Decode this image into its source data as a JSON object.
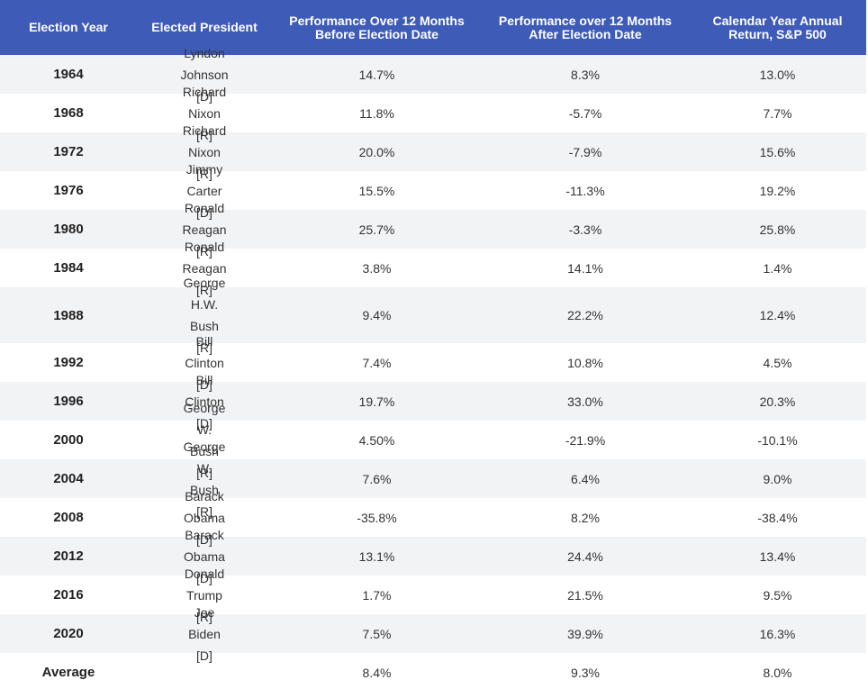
{
  "headers": [
    "Election Year",
    "Elected President",
    "Performance Over 12 Months Before Election Date",
    "Performance over 12 Months After Election Date",
    "Calendar Year Annual Return, S&P 500"
  ],
  "rows": [
    {
      "year": "1964",
      "president": "Lyndon Johnson [D]",
      "before": "14.7%",
      "after": "8.3%",
      "annual": "13.0%"
    },
    {
      "year": "1968",
      "president": "Richard Nixon [R]",
      "before": "11.8%",
      "after": "-5.7%",
      "annual": "7.7%"
    },
    {
      "year": "1972",
      "president": "Richard Nixon [R]",
      "before": "20.0%",
      "after": "-7.9%",
      "annual": "15.6%"
    },
    {
      "year": "1976",
      "president": "Jimmy Carter [D]",
      "before": "15.5%",
      "after": "-11.3%",
      "annual": "19.2%"
    },
    {
      "year": "1980",
      "president": "Ronald Reagan [R]",
      "before": "25.7%",
      "after": "-3.3%",
      "annual": "25.8%"
    },
    {
      "year": "1984",
      "president": "Ronald Reagan [R]",
      "before": "3.8%",
      "after": "14.1%",
      "annual": "1.4%"
    },
    {
      "year": "1988",
      "president": "George H.W. Bush [R]",
      "before": "9.4%",
      "after": "22.2%",
      "annual": "12.4%"
    },
    {
      "year": "1992",
      "president": "Bill Clinton [D]",
      "before": "7.4%",
      "after": "10.8%",
      "annual": "4.5%"
    },
    {
      "year": "1996",
      "president": "Bill Clinton [D]",
      "before": "19.7%",
      "after": "33.0%",
      "annual": "20.3%"
    },
    {
      "year": "2000",
      "president": "George W. Bush [R]",
      "before": "4.50%",
      "after": "-21.9%",
      "annual": "-10.1%"
    },
    {
      "year": "2004",
      "president": "George W. Bush [R]",
      "before": "7.6%",
      "after": "6.4%",
      "annual": "9.0%"
    },
    {
      "year": "2008",
      "president": "Barack Obama [D]",
      "before": "-35.8%",
      "after": "8.2%",
      "annual": "-38.4%"
    },
    {
      "year": "2012",
      "president": "Barack Obama [D]",
      "before": "13.1%",
      "after": "24.4%",
      "annual": "13.4%"
    },
    {
      "year": "2016",
      "president": "Donald Trump [R]",
      "before": "1.7%",
      "after": "21.5%",
      "annual": "9.5%"
    },
    {
      "year": "2020",
      "president": "Joe Biden [D]",
      "before": "7.5%",
      "after": "39.9%",
      "annual": "16.3%"
    }
  ],
  "average": {
    "label": "Average",
    "president": "",
    "before": "8.4%",
    "after": "9.3%",
    "annual": "8.0%"
  },
  "colors": {
    "header_bg": "#3e5bb8",
    "header_text": "#ffffff",
    "stripe": "#f2f3f5"
  }
}
